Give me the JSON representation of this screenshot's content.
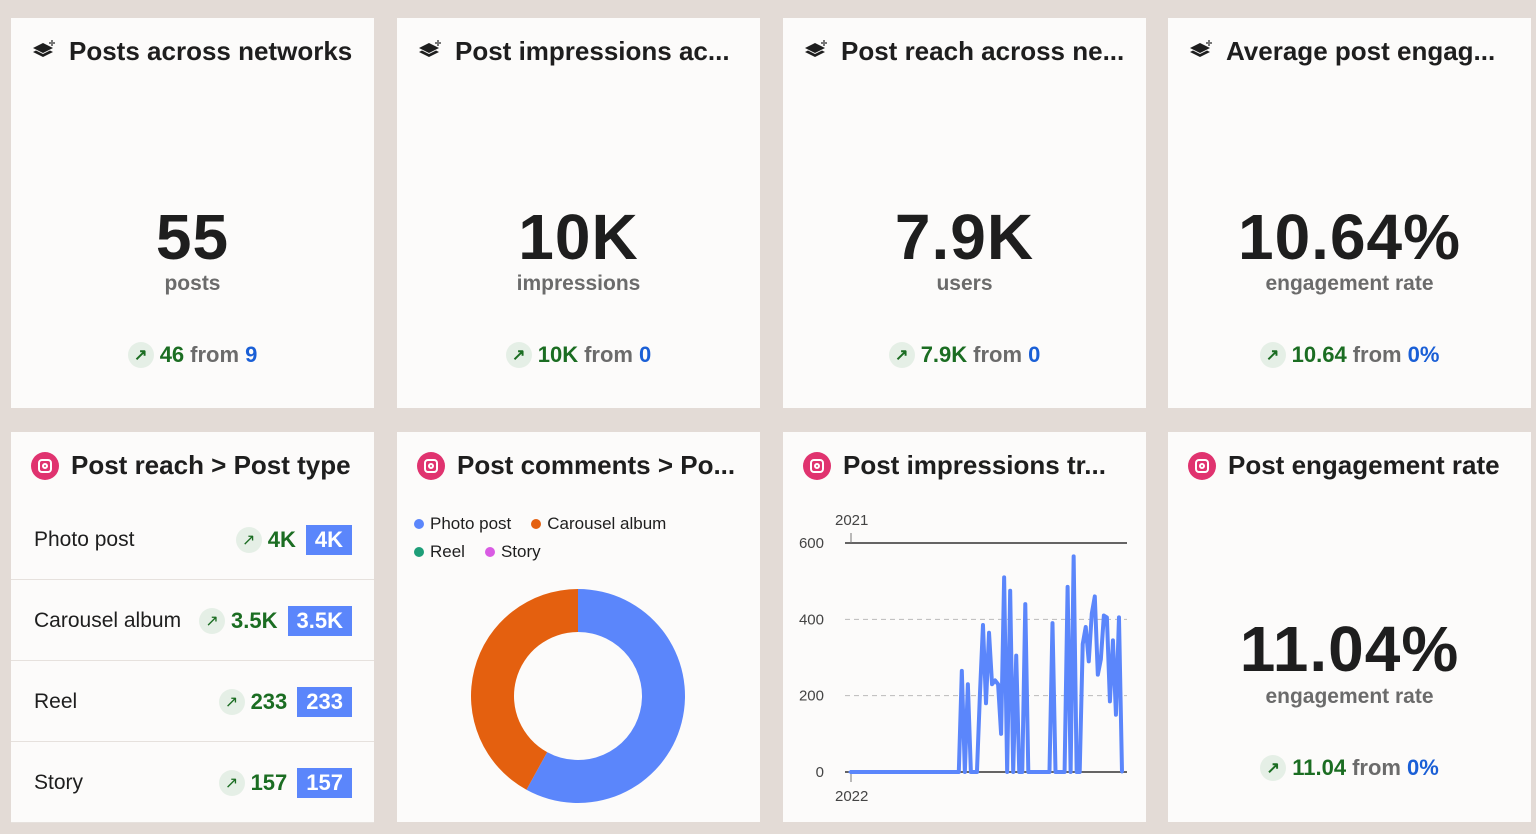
{
  "kpis": [
    {
      "title": "Posts across networks",
      "value": "55",
      "unit": "posts",
      "delta": "46",
      "from_word": "from",
      "from": "9",
      "icon": "layers-icon"
    },
    {
      "title": "Post impressions ac...",
      "value": "10K",
      "unit": "impressions",
      "delta": "10K",
      "from_word": "from",
      "from": "0",
      "icon": "layers-icon"
    },
    {
      "title": "Post reach across ne...",
      "value": "7.9K",
      "unit": "users",
      "delta": "7.9K",
      "from_word": "from",
      "from": "0",
      "icon": "layers-icon"
    },
    {
      "title": "Average post engag...",
      "value": "10.64%",
      "unit": "engagement rate",
      "delta": "10.64",
      "from_word": "from",
      "from": "0%",
      "icon": "layers-icon"
    }
  ],
  "reach_by_type": {
    "title": "Post reach > Post type",
    "icon": "instagram-icon",
    "rows": [
      {
        "label": "Photo post",
        "delta": "4K",
        "value": "4K"
      },
      {
        "label": "Carousel album",
        "delta": "3.5K",
        "value": "3.5K"
      },
      {
        "label": "Reel",
        "delta": "233",
        "value": "233"
      },
      {
        "label": "Story",
        "delta": "157",
        "value": "157"
      }
    ]
  },
  "colors": {
    "up": "#1b6d22",
    "from": "#1a5fd6",
    "badge": "#5b86fb",
    "photo": "#5b86fb",
    "carousel": "#e4600f",
    "reel": "#1e9e78",
    "story": "#d95be3"
  },
  "chart_data": [
    {
      "type": "pie",
      "donut": true,
      "title": "Post comments > Po...",
      "legend_position": "top",
      "categories": [
        "Photo post",
        "Carousel album",
        "Reel",
        "Story"
      ],
      "values": [
        58,
        42,
        0,
        0
      ],
      "colors": [
        "#5b86fb",
        "#e4600f",
        "#1e9e78",
        "#d95be3"
      ]
    },
    {
      "type": "line",
      "title": "Post impressions tr...",
      "x_tick_labels": [
        "2021",
        "2022"
      ],
      "ylim": [
        0,
        600
      ],
      "y_ticks": [
        0,
        200,
        400,
        600
      ],
      "grid": true,
      "color": "#5b86fb",
      "values": [
        0,
        0,
        0,
        0,
        0,
        0,
        0,
        0,
        0,
        0,
        0,
        0,
        0,
        0,
        0,
        0,
        0,
        0,
        0,
        0,
        0,
        0,
        0,
        0,
        0,
        0,
        0,
        0,
        0,
        0,
        0,
        0,
        0,
        0,
        0,
        0,
        0,
        265,
        0,
        230,
        0,
        0,
        0,
        205,
        385,
        180,
        365,
        230,
        240,
        230,
        100,
        510,
        0,
        475,
        0,
        305,
        0,
        0,
        440,
        0,
        0,
        0,
        0,
        0,
        0,
        0,
        0,
        390,
        0,
        0,
        0,
        0,
        485,
        0,
        565,
        0,
        0,
        335,
        380,
        290,
        415,
        460,
        255,
        295,
        410,
        405,
        185,
        345,
        150,
        405,
        0
      ]
    }
  ],
  "engagement": {
    "title": "Post engagement rate",
    "icon": "instagram-icon",
    "value": "11.04%",
    "unit": "engagement rate",
    "delta": "11.04",
    "from_word": "from",
    "from": "0%"
  }
}
